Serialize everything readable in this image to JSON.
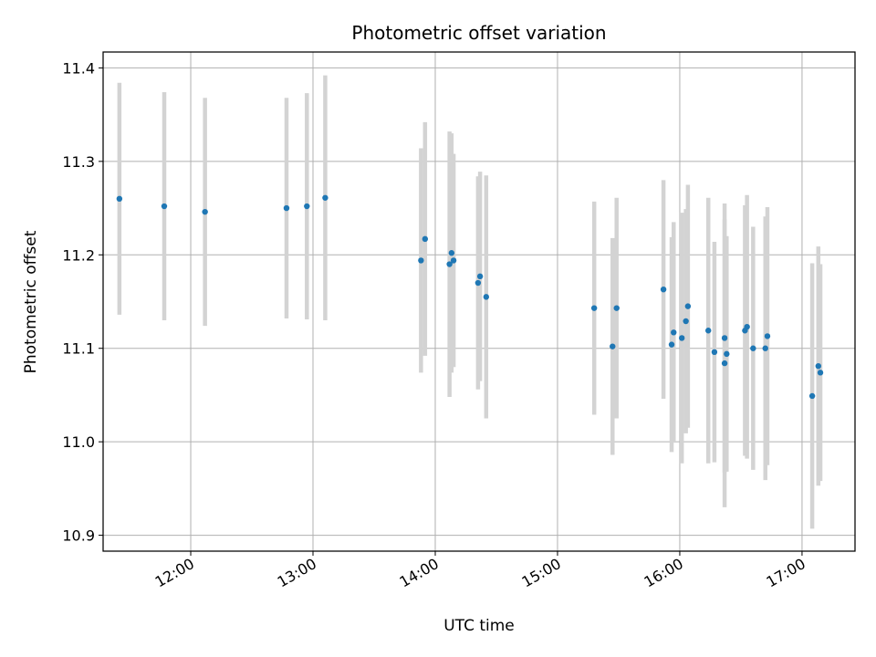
{
  "chart_data": {
    "type": "scatter",
    "title": "Photometric offset variation",
    "xlabel": "UTC time",
    "ylabel": "Photometric offset",
    "xlim": [
      "11:17",
      "17:26"
    ],
    "ylim": [
      10.883,
      11.417
    ],
    "x_ticks": [
      "12:00",
      "13:00",
      "14:00",
      "15:00",
      "16:00",
      "17:00"
    ],
    "y_ticks": [
      10.9,
      11.0,
      11.1,
      11.2,
      11.3,
      11.4
    ],
    "y_tick_labels": [
      "10.9",
      "11.0",
      "11.1",
      "11.2",
      "11.3",
      "11.4"
    ],
    "grid": true,
    "point_color": "#1f77b4",
    "errorbar_color": "#d3d3d3",
    "series": [
      {
        "points": [
          {
            "x": "11:25",
            "y": 11.26,
            "err": 0.124
          },
          {
            "x": "11:47",
            "y": 11.252,
            "err": 0.122
          },
          {
            "x": "12:07",
            "y": 11.246,
            "err": 0.122
          },
          {
            "x": "12:47",
            "y": 11.25,
            "err": 0.118
          },
          {
            "x": "12:57",
            "y": 11.252,
            "err": 0.121
          },
          {
            "x": "13:06",
            "y": 11.261,
            "err": 0.131
          },
          {
            "x": "13:53",
            "y": 11.194,
            "err": 0.12
          },
          {
            "x": "13:55",
            "y": 11.217,
            "err": 0.125
          },
          {
            "x": "14:07",
            "y": 11.19,
            "err": 0.142
          },
          {
            "x": "14:08",
            "y": 11.202,
            "err": 0.128
          },
          {
            "x": "14:09",
            "y": 11.194,
            "err": 0.114
          },
          {
            "x": "14:21",
            "y": 11.17,
            "err": 0.114
          },
          {
            "x": "14:22",
            "y": 11.177,
            "err": 0.112
          },
          {
            "x": "14:25",
            "y": 11.155,
            "err": 0.13
          },
          {
            "x": "15:18",
            "y": 11.143,
            "err": 0.114
          },
          {
            "x": "15:27",
            "y": 11.102,
            "err": 0.116
          },
          {
            "x": "15:29",
            "y": 11.143,
            "err": 0.118
          },
          {
            "x": "15:52",
            "y": 11.163,
            "err": 0.117
          },
          {
            "x": "15:56",
            "y": 11.104,
            "err": 0.115
          },
          {
            "x": "15:57",
            "y": 11.117,
            "err": 0.118
          },
          {
            "x": "16:01",
            "y": 11.111,
            "err": 0.134
          },
          {
            "x": "16:03",
            "y": 11.129,
            "err": 0.12
          },
          {
            "x": "16:04",
            "y": 11.145,
            "err": 0.13
          },
          {
            "x": "16:14",
            "y": 11.119,
            "err": 0.142
          },
          {
            "x": "16:17",
            "y": 11.096,
            "err": 0.118
          },
          {
            "x": "16:22",
            "y": 11.111,
            "err": 0.144
          },
          {
            "x": "16:22",
            "y": 11.084,
            "err": 0.154
          },
          {
            "x": "16:23",
            "y": 11.094,
            "err": 0.126
          },
          {
            "x": "16:32",
            "y": 11.119,
            "err": 0.134
          },
          {
            "x": "16:33",
            "y": 11.123,
            "err": 0.141
          },
          {
            "x": "16:36",
            "y": 11.1,
            "err": 0.13
          },
          {
            "x": "16:42",
            "y": 11.1,
            "err": 0.141
          },
          {
            "x": "16:43",
            "y": 11.113,
            "err": 0.138
          },
          {
            "x": "17:05",
            "y": 11.049,
            "err": 0.142
          },
          {
            "x": "17:08",
            "y": 11.081,
            "err": 0.128
          },
          {
            "x": "17:09",
            "y": 11.074,
            "err": 0.116
          }
        ]
      }
    ]
  }
}
